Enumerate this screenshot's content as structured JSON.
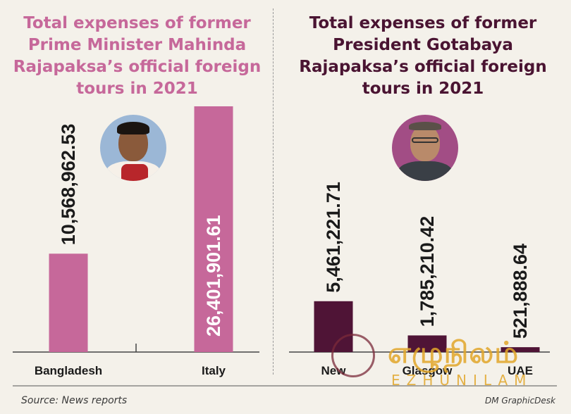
{
  "source": "Source: News reports",
  "credit": "DM GraphicDesk",
  "watermark": {
    "script_text": "எழுநிலம்",
    "latin_text": "EZHUNILAM"
  },
  "chart_data": [
    {
      "type": "bar",
      "title": "Total expenses of former\nPrime Minister Mahinda\nRajapaksa’s official foreign\ntours in 2021",
      "title_color": "#c6689a",
      "bar_color": "#c6689a",
      "categories": [
        "Bangladesh",
        "Italy"
      ],
      "values": [
        10568962.53,
        26401901.61
      ],
      "value_labels": [
        "10,568,962.53",
        "26,401,901.61"
      ],
      "ylim": [
        0,
        26401901.61
      ],
      "grid": false
    },
    {
      "type": "bar",
      "title": "Total expenses of former\nPresident Gotabaya\nRajapaksa’s official foreign\ntours in 2021",
      "title_color": "#4a1432",
      "bar_color": "#4f1436",
      "categories": [
        "New",
        "Glasgow",
        "UAE"
      ],
      "values": [
        5461221.71,
        1785210.42,
        521888.64
      ],
      "value_labels": [
        "5,461,221.71",
        "1,785,210.42",
        "521,888.64"
      ],
      "ylim": [
        0,
        26401901.61
      ],
      "grid": false
    }
  ]
}
